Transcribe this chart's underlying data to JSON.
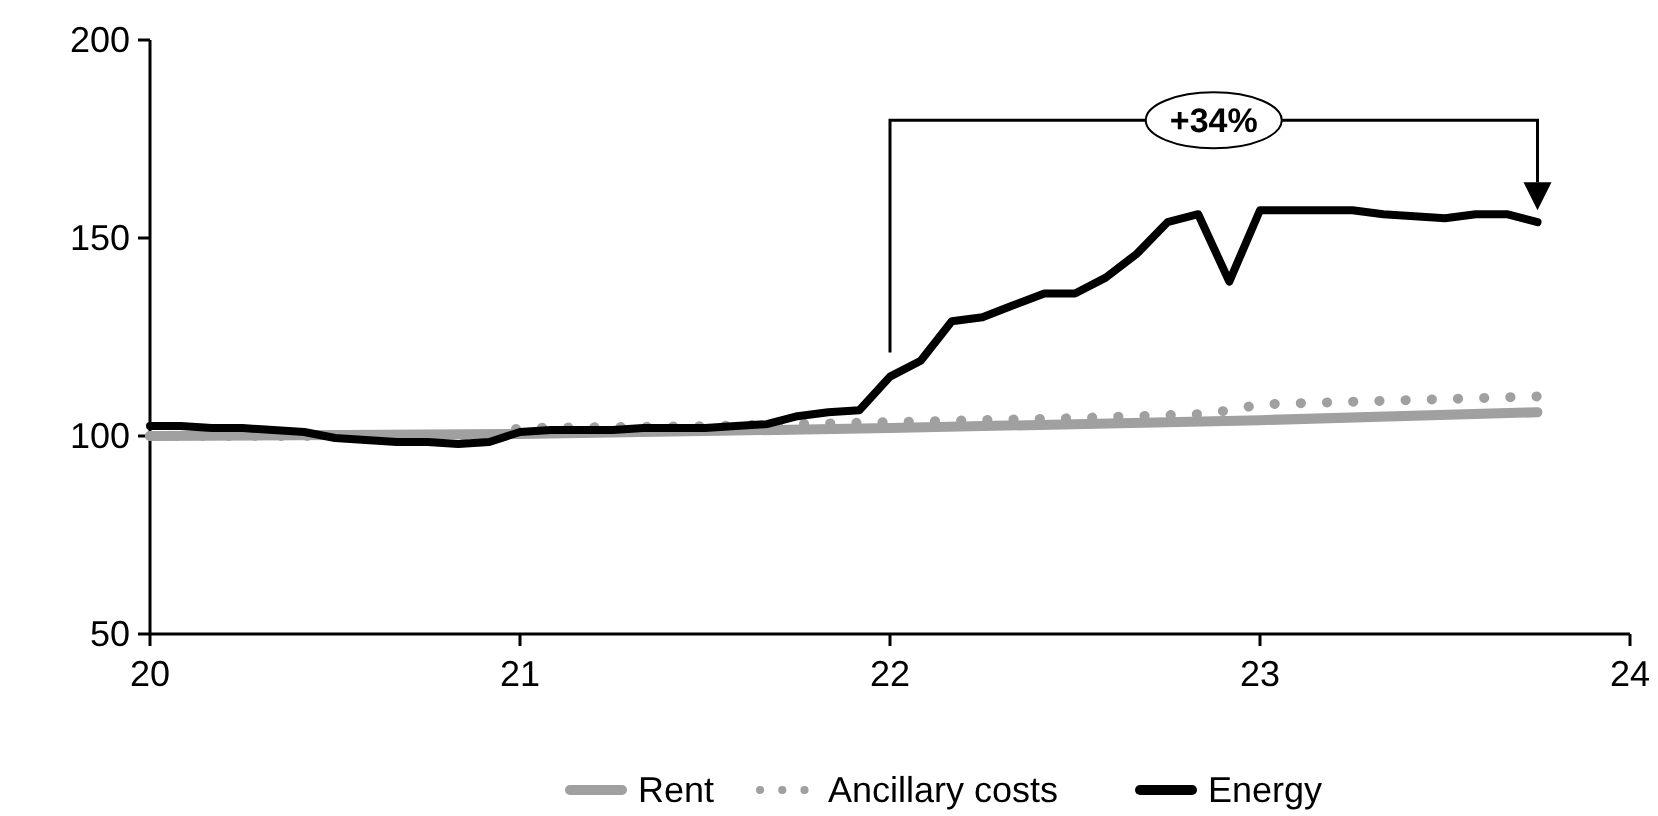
{
  "chart_data": {
    "type": "line",
    "xlim": [
      20,
      24
    ],
    "ylim": [
      50,
      200
    ],
    "xticks": [
      20,
      21,
      22,
      23,
      24
    ],
    "yticks": [
      50,
      100,
      150,
      200
    ],
    "grid": false,
    "legend": "bottom",
    "marker": "none",
    "annotations": [
      "+34%"
    ],
    "series": [
      {
        "name": "Rent",
        "color": "#a0a0a0",
        "line_style": "solid",
        "x": [
          20,
          21,
          22,
          23,
          23.75
        ],
        "values": [
          100,
          100.5,
          102,
          104,
          106
        ]
      },
      {
        "name": "Ancillary costs",
        "color": "#a0a0a0",
        "line_style": "dotted",
        "x": [
          20,
          20.92,
          21,
          21.5,
          22,
          22.5,
          22.83,
          22.92,
          23,
          23.75
        ],
        "values": [
          100,
          100,
          102,
          102.5,
          103.5,
          104.5,
          105.5,
          106.5,
          108,
          110
        ]
      },
      {
        "name": "Energy",
        "color": "#000000",
        "line_style": "solid",
        "x": [
          20,
          20.083,
          20.167,
          20.25,
          20.333,
          20.417,
          20.5,
          20.583,
          20.667,
          20.75,
          20.833,
          20.917,
          21,
          21.083,
          21.167,
          21.25,
          21.333,
          21.417,
          21.5,
          21.583,
          21.667,
          21.75,
          21.833,
          21.917,
          22,
          22.083,
          22.167,
          22.25,
          22.333,
          22.417,
          22.5,
          22.583,
          22.667,
          22.75,
          22.833,
          22.917,
          23,
          23.083,
          23.167,
          23.25,
          23.333,
          23.417,
          23.5,
          23.583,
          23.667,
          23.75
        ],
        "values": [
          102.5,
          102.5,
          102,
          102,
          101.5,
          101,
          99.5,
          99,
          98.5,
          98.5,
          98,
          98.5,
          101,
          101.5,
          101.5,
          101.5,
          102,
          102,
          102,
          102.5,
          103,
          105,
          106,
          106.5,
          115,
          119,
          129,
          130,
          133,
          136,
          136,
          140,
          146,
          154,
          156,
          139,
          157,
          157,
          157,
          157,
          156,
          155.5,
          155,
          156,
          156,
          154
        ]
      }
    ]
  }
}
